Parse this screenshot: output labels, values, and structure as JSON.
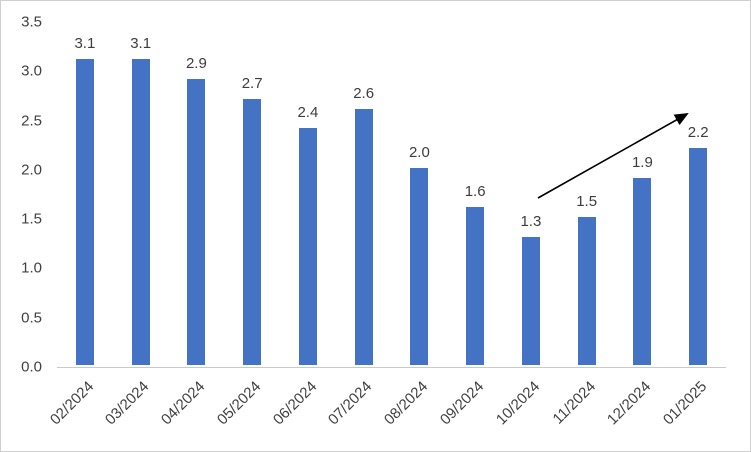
{
  "chart_data": {
    "type": "bar",
    "title": "",
    "xlabel": "",
    "ylabel": "",
    "categories": [
      "02/2024",
      "03/2024",
      "04/2024",
      "05/2024",
      "06/2024",
      "07/2024",
      "08/2024",
      "09/2024",
      "10/2024",
      "11/2024",
      "12/2024",
      "01/2025"
    ],
    "values": [
      3.1,
      3.1,
      2.9,
      2.7,
      2.4,
      2.6,
      2.0,
      1.6,
      1.3,
      1.5,
      1.9,
      2.2
    ],
    "data_labels": [
      "3.1",
      "3.1",
      "2.9",
      "2.7",
      "2.4",
      "2.6",
      "2.0",
      "1.6",
      "1.3",
      "1.5",
      "1.9",
      "2.2"
    ],
    "ylim": [
      0,
      3.5
    ],
    "yticks": [
      0,
      0.5,
      1,
      1.5,
      2,
      2.5,
      3,
      3.5
    ],
    "ytick_labels": [
      "0.0",
      "0.5",
      "1.0",
      "1.5",
      "2.0",
      "2.5",
      "3.0",
      "3.5"
    ],
    "grid": false,
    "legend": "none",
    "bar_color": "#4472C4",
    "annotation": {
      "type": "arrow",
      "color": "#000000",
      "from": "above 10/2024 bar",
      "to": "top of 01/2025 bar",
      "meaning": "upward trend from 10/2024 through 01/2025"
    }
  }
}
